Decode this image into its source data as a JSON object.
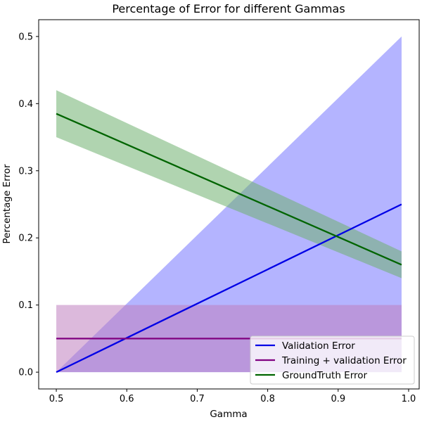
{
  "chart_data": {
    "type": "line",
    "title": "Percentage of Error for different Gammas",
    "xlabel": "Gamma",
    "ylabel": "Percentage Error",
    "xlim": [
      0.475,
      1.015
    ],
    "ylim": [
      -0.025,
      0.525
    ],
    "xticks": [
      0.5,
      0.6,
      0.7,
      0.8,
      0.9,
      1.0
    ],
    "xtick_labels": [
      "0.5",
      "0.6",
      "0.7",
      "0.8",
      "0.9",
      "1.0"
    ],
    "yticks": [
      0.0,
      0.1,
      0.2,
      0.3,
      0.4,
      0.5
    ],
    "ytick_labels": [
      "0.0",
      "0.1",
      "0.2",
      "0.3",
      "0.4",
      "0.5"
    ],
    "grid": false,
    "legend_position": "lower-right",
    "series": [
      {
        "name": "Validation Error",
        "color": "#0000e6",
        "fill_color": "#8c8cff",
        "fill_opacity": 0.65,
        "x": [
          0.5,
          0.99
        ],
        "y": [
          0.0,
          0.25
        ],
        "lower": [
          0.0,
          0.0
        ],
        "upper": [
          0.0,
          0.5
        ]
      },
      {
        "name": "Training + validation Error",
        "color": "#800080",
        "fill_color": "#c080c0",
        "fill_opacity": 0.55,
        "x": [
          0.5,
          0.99
        ],
        "y": [
          0.05,
          0.05
        ],
        "lower": [
          0.0,
          0.0
        ],
        "upper": [
          0.1,
          0.1
        ]
      },
      {
        "name": "GroundTruth Error",
        "color": "#006400",
        "fill_color": "#70b070",
        "fill_opacity": 0.55,
        "x": [
          0.5,
          0.99
        ],
        "y": [
          0.385,
          0.16
        ],
        "lower": [
          0.35,
          0.14
        ],
        "upper": [
          0.42,
          0.18
        ]
      }
    ]
  }
}
